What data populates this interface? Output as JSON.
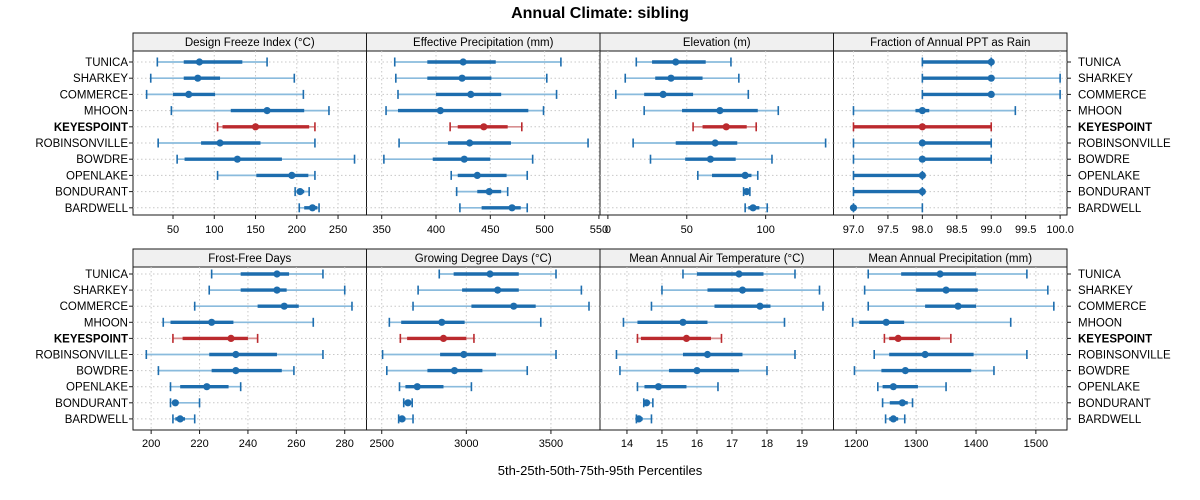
{
  "header": {
    "title": "Annual Climate: sibling"
  },
  "footer": {
    "xlabel": "5th-25th-50th-75th-95th Percentiles"
  },
  "colors": {
    "series_main": "#1D6DAE",
    "series_whisker": "#8ABBDD",
    "highlight_main": "#BB2A2E",
    "highlight_whisker": "#D78F90",
    "strip_bg": "#F0F0F0",
    "panel_bg": "#FFFFFF",
    "grid": "#C8C8C8",
    "border": "#1A1A1A",
    "text": "#000000"
  },
  "chart_data": {
    "type": "scatter",
    "subtype": "trellis-percentile-dotplot",
    "title": "Annual Climate: sibling",
    "xlabel": "5th-25th-50th-75th-95th Percentiles",
    "grid": true,
    "percentiles": [
      5,
      25,
      50,
      75,
      95
    ],
    "sites": [
      "TUNICA",
      "SHARKEY",
      "COMMERCE",
      "MHOON",
      "KEYESPOINT",
      "ROBINSONVILLE",
      "BOWDRE",
      "OPENLAKE",
      "BONDURANT",
      "BARDWELL"
    ],
    "highlight_site": "KEYESPOINT",
    "panels": [
      {
        "label": "Design Freeze Index (°C)",
        "row": 0,
        "col": 0,
        "domain": [
          1.5,
          284.5
        ],
        "tick_values": [
          50,
          100,
          150,
          200,
          250
        ],
        "tick_labels": [
          "50",
          "100",
          "150",
          "200",
          "250"
        ],
        "values": [
          [
            31,
            63,
            82,
            134,
            164
          ],
          [
            23,
            63,
            80,
            107,
            197
          ],
          [
            18,
            50,
            69,
            101,
            208
          ],
          [
            48,
            120,
            164,
            209,
            239
          ],
          [
            104,
            110,
            150,
            215,
            222
          ],
          [
            32,
            84,
            107,
            156,
            222
          ],
          [
            55,
            64,
            128,
            182,
            270
          ],
          [
            104,
            151,
            194,
            214,
            222
          ],
          [
            198,
            200,
            204,
            209,
            215
          ],
          [
            203,
            209,
            219,
            225,
            227
          ]
        ]
      },
      {
        "label": "Effective Precipitation (mm)",
        "row": 0,
        "col": 1,
        "domain": [
          336,
          551
        ],
        "tick_values": [
          350,
          400,
          450,
          500,
          550
        ],
        "tick_labels": [
          "350",
          "400",
          "450",
          "500",
          "550"
        ],
        "values": [
          [
            362,
            392,
            425,
            455,
            515
          ],
          [
            363,
            392,
            424,
            451,
            502
          ],
          [
            365,
            400,
            432,
            460,
            511
          ],
          [
            354,
            365,
            404,
            485,
            499
          ],
          [
            413,
            420,
            444,
            466,
            479
          ],
          [
            366,
            411,
            431,
            469,
            540
          ],
          [
            352,
            397,
            426,
            450,
            489
          ],
          [
            414,
            420,
            438,
            465,
            484
          ],
          [
            419,
            438,
            449,
            460,
            466
          ],
          [
            422,
            442,
            470,
            478,
            484
          ]
        ]
      },
      {
        "label": "Elevation (m)",
        "row": 0,
        "col": 2,
        "domain": [
          -5,
          143
        ],
        "tick_values": [
          0,
          50,
          100
        ],
        "tick_labels": [
          "0",
          "50",
          "100"
        ],
        "values": [
          [
            18,
            28,
            43,
            62,
            78
          ],
          [
            11,
            30,
            40,
            60,
            83
          ],
          [
            5,
            23,
            35,
            54,
            89
          ],
          [
            23,
            47,
            71,
            95,
            108
          ],
          [
            54,
            60,
            75,
            88,
            94
          ],
          [
            16,
            43,
            68,
            82,
            138
          ],
          [
            27,
            49,
            65,
            81,
            104
          ],
          [
            57,
            66,
            87,
            91,
            95
          ],
          [
            86,
            87,
            88,
            89,
            90
          ],
          [
            87,
            89,
            92,
            96,
            101
          ]
        ]
      },
      {
        "label": "Fraction of Annual PPT as Rain",
        "row": 0,
        "col": 3,
        "domain": [
          96.71,
          100.1
        ],
        "tick_values": [
          97.0,
          97.5,
          98.0,
          98.5,
          99.0,
          99.5,
          100.0
        ],
        "tick_labels": [
          "97.0",
          "97.5",
          "98.0",
          "98.5",
          "99.0",
          "99.5",
          "100.0"
        ],
        "values": [
          [
            98,
            98,
            99,
            99,
            99
          ],
          [
            98,
            98,
            99,
            99,
            100
          ],
          [
            98,
            98,
            99,
            99,
            100
          ],
          [
            97,
            97.9,
            98,
            98.1,
            99.35
          ],
          [
            97,
            97,
            98,
            99,
            99
          ],
          [
            97,
            98,
            98,
            99,
            99
          ],
          [
            97,
            98,
            98,
            99,
            99
          ],
          [
            97,
            97,
            98,
            98,
            98
          ],
          [
            97,
            97,
            98,
            98,
            98
          ],
          [
            97,
            97,
            97,
            97,
            98
          ]
        ]
      },
      {
        "label": "Frost-Free Days",
        "row": 1,
        "col": 0,
        "domain": [
          192.5,
          289
        ],
        "tick_values": [
          200,
          220,
          240,
          260,
          280
        ],
        "tick_labels": [
          "200",
          "220",
          "240",
          "260",
          "280"
        ],
        "values": [
          [
            225,
            237,
            252,
            257,
            271
          ],
          [
            224,
            237,
            252,
            256,
            280
          ],
          [
            218,
            244,
            255,
            261,
            283
          ],
          [
            205,
            208,
            225,
            234,
            267
          ],
          [
            209,
            213,
            233,
            240,
            244
          ],
          [
            198,
            224,
            235,
            252,
            271
          ],
          [
            203,
            225,
            235,
            254,
            259
          ],
          [
            208,
            212,
            223,
            232,
            237
          ],
          [
            208,
            209,
            210,
            211,
            220
          ],
          [
            209,
            210,
            212,
            214,
            218
          ]
        ]
      },
      {
        "label": "Growing Degree Days (°C)",
        "row": 1,
        "col": 1,
        "domain": [
          2410,
          3790
        ],
        "tick_values": [
          2500,
          3000,
          3500
        ],
        "tick_labels": [
          "2500",
          "3000",
          "3500"
        ],
        "values": [
          [
            2840,
            2925,
            3140,
            3310,
            3530
          ],
          [
            2715,
            2975,
            3185,
            3310,
            3680
          ],
          [
            2685,
            3030,
            3280,
            3410,
            3725
          ],
          [
            2545,
            2615,
            2855,
            2990,
            3440
          ],
          [
            2610,
            2650,
            2865,
            3000,
            3045
          ],
          [
            2505,
            2845,
            2985,
            3175,
            3530
          ],
          [
            2530,
            2770,
            2930,
            3095,
            3360
          ],
          [
            2605,
            2640,
            2710,
            2865,
            3030
          ],
          [
            2630,
            2640,
            2655,
            2665,
            2680
          ],
          [
            2600,
            2605,
            2620,
            2640,
            2685
          ]
        ]
      },
      {
        "label": "Mean Annual Air Temperature (°C)",
        "row": 1,
        "col": 2,
        "domain": [
          13.23,
          19.9
        ],
        "tick_values": [
          14,
          15,
          16,
          17,
          18,
          19
        ],
        "tick_labels": [
          "14",
          "15",
          "16",
          "17",
          "18",
          "19"
        ],
        "values": [
          [
            15.6,
            16.0,
            17.2,
            17.9,
            18.8
          ],
          [
            15.0,
            16.3,
            17.3,
            17.9,
            19.5
          ],
          [
            14.7,
            16.5,
            17.8,
            18.1,
            19.6
          ],
          [
            13.9,
            14.3,
            15.6,
            16.3,
            18.5
          ],
          [
            14.3,
            14.4,
            15.7,
            16.4,
            16.7
          ],
          [
            13.7,
            15.6,
            16.3,
            17.3,
            18.8
          ],
          [
            13.8,
            15.2,
            16.0,
            17.2,
            18.0
          ],
          [
            14.3,
            14.5,
            14.9,
            15.7,
            16.6
          ],
          [
            14.48,
            14.52,
            14.56,
            14.62,
            14.74
          ],
          [
            14.27,
            14.31,
            14.34,
            14.45,
            14.7
          ]
        ]
      },
      {
        "label": "Mean Annual Precipitation (mm)",
        "row": 1,
        "col": 3,
        "domain": [
          1162,
          1552
        ],
        "tick_values": [
          1200,
          1300,
          1400,
          1500
        ],
        "tick_labels": [
          "1200",
          "1300",
          "1400",
          "1500"
        ],
        "values": [
          [
            1220,
            1275,
            1340,
            1400,
            1485
          ],
          [
            1214,
            1300,
            1350,
            1403,
            1520
          ],
          [
            1220,
            1315,
            1370,
            1400,
            1530
          ],
          [
            1194,
            1205,
            1250,
            1280,
            1458
          ],
          [
            1247,
            1255,
            1270,
            1340,
            1358
          ],
          [
            1230,
            1255,
            1315,
            1396,
            1485
          ],
          [
            1197,
            1242,
            1282,
            1392,
            1430
          ],
          [
            1236,
            1244,
            1262,
            1303,
            1350
          ],
          [
            1244,
            1256,
            1277,
            1286,
            1294
          ],
          [
            1249,
            1255,
            1262,
            1270,
            1281
          ]
        ]
      }
    ]
  }
}
